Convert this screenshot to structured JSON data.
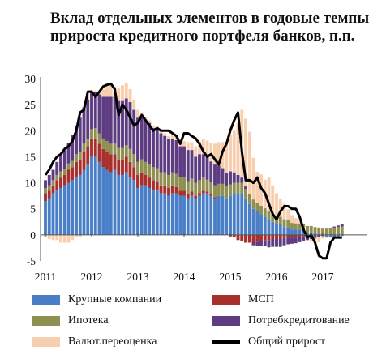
{
  "title": "Вклад отдельных элементов в годовые темпы прироста кредитного портфеля банков, п.п.",
  "chart_data": {
    "type": "bar",
    "stacked": true,
    "title": "Вклад отдельных элементов в годовые темпы прироста кредитного портфеля банков, п.п.",
    "xlabel": "",
    "ylabel": "",
    "ylim": [
      -5,
      30
    ],
    "yticks": [
      -5,
      0,
      5,
      10,
      15,
      20,
      25,
      30
    ],
    "xticks": [
      "2011",
      "2012",
      "2013",
      "2014",
      "2015",
      "2016",
      "2017"
    ],
    "x_start": "2011-01",
    "frequency": "monthly",
    "legend_position": "bottom",
    "categories": [
      "2011-01",
      "2011-02",
      "2011-03",
      "2011-04",
      "2011-05",
      "2011-06",
      "2011-07",
      "2011-08",
      "2011-09",
      "2011-10",
      "2011-11",
      "2011-12",
      "2012-01",
      "2012-02",
      "2012-03",
      "2012-04",
      "2012-05",
      "2012-06",
      "2012-07",
      "2012-08",
      "2012-09",
      "2012-10",
      "2012-11",
      "2012-12",
      "2013-01",
      "2013-02",
      "2013-03",
      "2013-04",
      "2013-05",
      "2013-06",
      "2013-07",
      "2013-08",
      "2013-09",
      "2013-10",
      "2013-11",
      "2013-12",
      "2014-01",
      "2014-02",
      "2014-03",
      "2014-04",
      "2014-05",
      "2014-06",
      "2014-07",
      "2014-08",
      "2014-09",
      "2014-10",
      "2014-11",
      "2014-12",
      "2015-01",
      "2015-02",
      "2015-03",
      "2015-04",
      "2015-05",
      "2015-06",
      "2015-07",
      "2015-08",
      "2015-09",
      "2015-10",
      "2015-11",
      "2015-12",
      "2016-01",
      "2016-02",
      "2016-03",
      "2016-04",
      "2016-05",
      "2016-06",
      "2016-07",
      "2016-08",
      "2016-09",
      "2016-10",
      "2016-11",
      "2016-12",
      "2017-01",
      "2017-02",
      "2017-03",
      "2017-04",
      "2017-05",
      "2017-06"
    ],
    "series": [
      {
        "name": "Крупные компании",
        "kind": "bar",
        "color": "#4a7fc8",
        "values": [
          6.5,
          7,
          8,
          8.5,
          9,
          9.5,
          10,
          10.5,
          11,
          11.5,
          12.5,
          13.5,
          15,
          15,
          14,
          13,
          12.5,
          12,
          12.5,
          11.5,
          11.5,
          12,
          11,
          10.5,
          9,
          9.5,
          9.5,
          9,
          8.5,
          8.5,
          8,
          8,
          7.5,
          8,
          8,
          7.5,
          7.5,
          7,
          7.5,
          7,
          7.5,
          8,
          8,
          7.5,
          7,
          7.5,
          7.5,
          7,
          7.5,
          8,
          8,
          8,
          7,
          6,
          5,
          4.5,
          4,
          3.5,
          3,
          2.5,
          2,
          2,
          1.5,
          1.5,
          1,
          1,
          1,
          0.8,
          0.5,
          0.5,
          0.3,
          0.2,
          0,
          -0.3,
          -0.5,
          -0.5,
          -0.3,
          -0.2
        ]
      },
      {
        "name": "МСП",
        "kind": "bar",
        "color": "#a8302c",
        "values": [
          1.5,
          1.5,
          1.5,
          2,
          2,
          2,
          2.5,
          2.5,
          3,
          3,
          3.5,
          3.5,
          3.5,
          3.5,
          3.5,
          3.5,
          3.5,
          3.5,
          3,
          3,
          3,
          3,
          3,
          2.5,
          2.5,
          2.5,
          2,
          2,
          2,
          1.8,
          1.5,
          1.5,
          1.5,
          1.5,
          1.2,
          1,
          1,
          0.8,
          0.8,
          0.5,
          0.5,
          0.5,
          0.3,
          0.3,
          0.2,
          0,
          0,
          0,
          -0.3,
          -0.5,
          -1,
          -1.2,
          -1.5,
          -1.5,
          -1.5,
          -1.3,
          -1.2,
          -1,
          -1,
          -0.8,
          -0.8,
          -0.8,
          -0.6,
          -0.5,
          -0.5,
          -0.5,
          -0.4,
          -0.3,
          -0.3,
          -0.2,
          -0.2,
          -0.1,
          0,
          0,
          0,
          0,
          0,
          0
        ]
      },
      {
        "name": "Ипотека",
        "kind": "bar",
        "color": "#8f8f52",
        "values": [
          1,
          1,
          1,
          1,
          1.2,
          1.2,
          1.2,
          1.2,
          1.5,
          1.5,
          1.5,
          1.5,
          1.8,
          2,
          2,
          2,
          2,
          2,
          2,
          2.2,
          2.2,
          2.2,
          2.5,
          2.5,
          2.5,
          2.5,
          2.5,
          2.5,
          2.5,
          2.5,
          2.5,
          2.5,
          2.5,
          2.5,
          2.5,
          2.5,
          2.5,
          2.5,
          2.5,
          2.5,
          2.5,
          2.5,
          2.3,
          2.3,
          2.3,
          2.3,
          2.3,
          2.3,
          2.2,
          2,
          2,
          2,
          1.8,
          1.8,
          1.8,
          1.6,
          1.6,
          1.6,
          1.5,
          1.5,
          1.5,
          1.5,
          1.5,
          1.4,
          1.3,
          1.2,
          1.2,
          1.2,
          1.2,
          1.2,
          1.2,
          1.2,
          1.2,
          1.2,
          1.3,
          1.4,
          1.5,
          1.6
        ]
      },
      {
        "name": "Потребкредитование",
        "kind": "bar",
        "color": "#5e3c82",
        "values": [
          1.5,
          2,
          2,
          2.5,
          3,
          3.5,
          4,
          5,
          5.5,
          6.5,
          7,
          7.5,
          7,
          7,
          7.5,
          8,
          8.5,
          9,
          9,
          9,
          9,
          9,
          9,
          8.5,
          8.5,
          8,
          8,
          8,
          7.5,
          7.5,
          7.5,
          7,
          7,
          6.5,
          6.5,
          6,
          6,
          6,
          5.5,
          5,
          5,
          4.5,
          4.5,
          4,
          4,
          3.5,
          3,
          2.5,
          2.5,
          2,
          1.5,
          1,
          0.5,
          0,
          -0.5,
          -0.8,
          -1,
          -1.2,
          -1.4,
          -1.5,
          -1.5,
          -1.5,
          -1.4,
          -1.3,
          -1.2,
          -1.1,
          -1,
          -0.8,
          -0.7,
          -0.6,
          -0.4,
          -0.3,
          -0.2,
          -0.1,
          0,
          0.2,
          0.3,
          0.4
        ]
      },
      {
        "name": "Валют.переоценка",
        "kind": "bar",
        "color": "#f8cfae",
        "values": [
          -0.5,
          -0.8,
          -1,
          -1,
          -1.5,
          -1.5,
          -1.5,
          -1,
          -0.5,
          -0.5,
          0.5,
          1,
          0.5,
          0.2,
          0.5,
          1.5,
          2,
          2.5,
          2,
          2.5,
          3,
          3,
          2.5,
          2,
          1.5,
          1,
          0.5,
          0.5,
          0.5,
          0.5,
          0.5,
          0.5,
          0.5,
          1,
          1,
          1,
          1,
          1.5,
          1.5,
          2,
          2.5,
          3,
          3,
          3.5,
          4,
          4.5,
          5,
          6,
          7,
          8,
          10,
          13,
          13,
          12,
          8,
          6,
          6,
          5.5,
          6.5,
          5.5,
          4.5,
          3.5,
          3,
          2,
          1.5,
          1,
          0.5,
          0.2,
          -0.2,
          -0.5,
          -0.8,
          -1,
          -0.5,
          -0.2,
          0,
          0,
          0,
          0
        ]
      },
      {
        "name": "Общий прирост",
        "kind": "line",
        "color": "#000000",
        "values": [
          11.5,
          12.5,
          14,
          15,
          15.5,
          16.5,
          17,
          18,
          20,
          23.5,
          24,
          27.5,
          27.5,
          26.5,
          27.5,
          28.5,
          28.8,
          29,
          28,
          23,
          25,
          24,
          22.5,
          21,
          21.5,
          23,
          22,
          21,
          20,
          20.5,
          20,
          20,
          20,
          19.5,
          19,
          17.5,
          19.5,
          19.5,
          19,
          18.5,
          17.5,
          16,
          15,
          15.5,
          14.5,
          13.5,
          16,
          17.5,
          20,
          22,
          23.5,
          16,
          10.5,
          10.5,
          10,
          11,
          9,
          8,
          6,
          4,
          3,
          4.5,
          5.5,
          5.5,
          5,
          5,
          3.5,
          1,
          -0.5,
          0,
          -1.5,
          -4,
          -4.5,
          -4.5,
          -1.5,
          -0.5,
          -0.5,
          -0.5
        ]
      }
    ]
  },
  "legend": [
    {
      "label": "Крупные компании",
      "color": "#4a7fc8",
      "kind": "bar"
    },
    {
      "label": "МСП",
      "color": "#a8302c",
      "kind": "bar"
    },
    {
      "label": "Ипотека",
      "color": "#8f8f52",
      "kind": "bar"
    },
    {
      "label": "Потребкредитование",
      "color": "#5e3c82",
      "kind": "bar"
    },
    {
      "label": "Валют.переоценка",
      "color": "#f8cfae",
      "kind": "bar"
    },
    {
      "label": "Общий прирост",
      "color": "#000000",
      "kind": "line"
    }
  ]
}
